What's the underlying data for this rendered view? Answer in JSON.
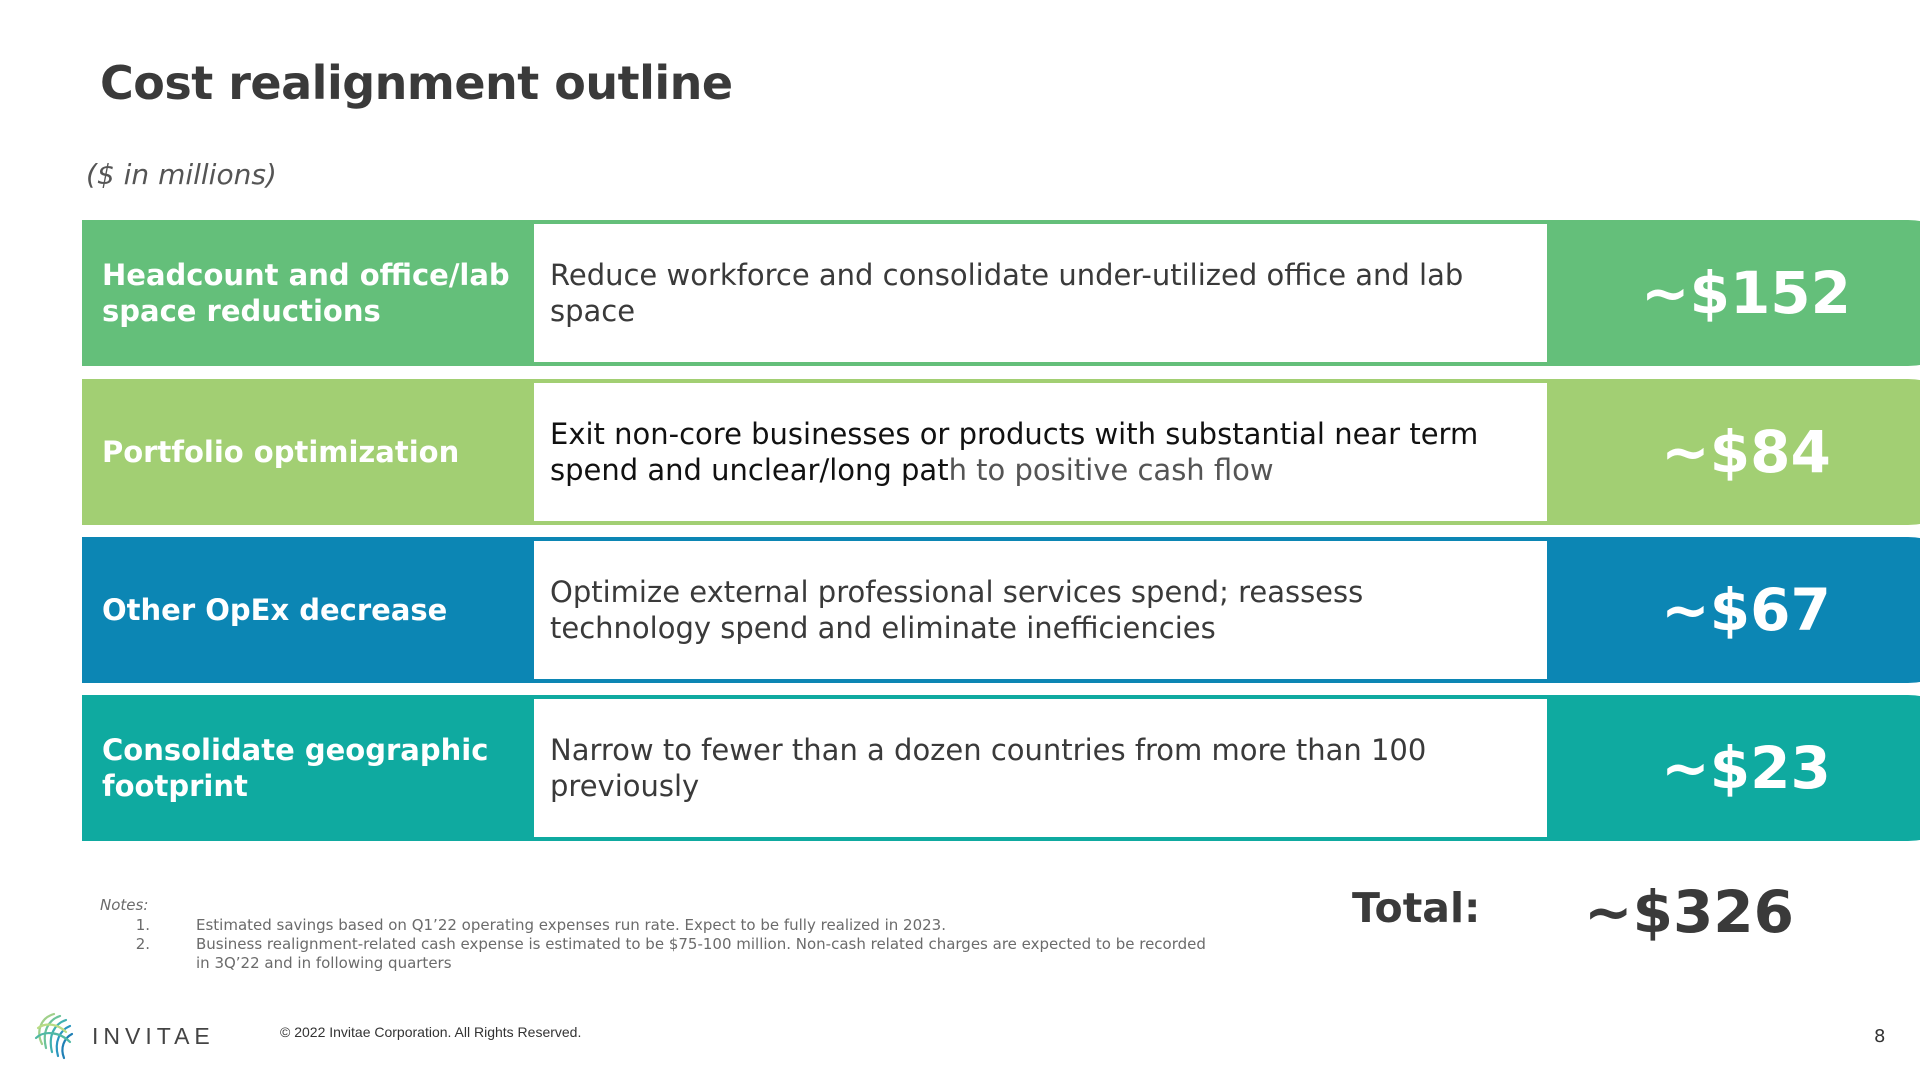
{
  "title": "Cost realignment outline",
  "units": "($ in millions)",
  "colors": {
    "green": "#64bf7a",
    "lime": "#a2cf73",
    "blue": "#0c86b4",
    "teal": "#0faaa0",
    "title_text": "#3a3a3a"
  },
  "rows": [
    {
      "label": "Headcount and office/lab space reductions",
      "description": "Reduce workforce and consolidate under-utilized office and lab space",
      "value": "~$152"
    },
    {
      "label": "Portfolio optimization",
      "description_part1": "Exit non-core businesses or products with substantial near term spend and unclear/long pat",
      "description_part2": "h to positive cash flow",
      "value": "~$84"
    },
    {
      "label": "Other OpEx decrease",
      "description": "Optimize external professional services spend; reassess technology spend and eliminate inefficiencies",
      "value": "~$67"
    },
    {
      "label": "Consolidate geographic footprint",
      "description": "Narrow to fewer than a dozen countries from more than 100 previously",
      "value": "~$23"
    }
  ],
  "total": {
    "label": "Total:",
    "value": "~$326"
  },
  "notes": {
    "heading": "Notes:",
    "items": [
      {
        "num": "1.",
        "text": "Estimated savings based on Q1’22 operating expenses run rate.  Expect to be fully realized in 2023."
      },
      {
        "num": "2.",
        "text": "Business realignment-related cash expense is estimated to be $75-100 million. Non-cash related charges are expected to be recorded in 3Q’22 and in following quarters"
      }
    ]
  },
  "footer": {
    "logo_text": "INVITAE",
    "copyright": "© 2022 Invitae Corporation. All Rights Reserved.",
    "page_number": "8"
  }
}
